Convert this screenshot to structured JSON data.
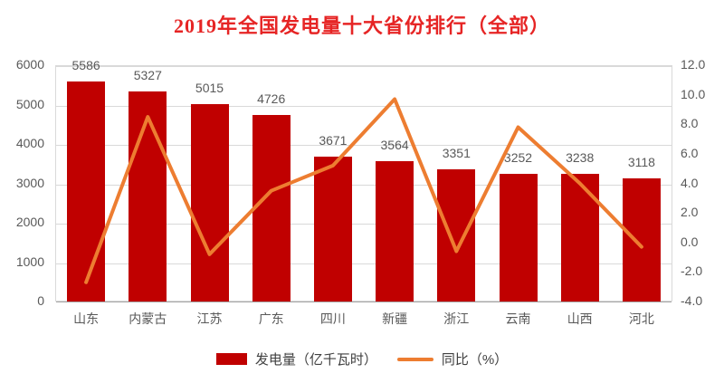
{
  "title": "2019年全国发电量十大省份排行（全部）",
  "colors": {
    "title": "#e62525",
    "bar": "#c00000",
    "line": "#ed7d31",
    "axis_text": "#595959",
    "grid": "#d9d9d9",
    "legend_text": "#404040"
  },
  "chart_data": {
    "type": "bar+line combo",
    "title": "2019年全国发电量十大省份排行（全部）",
    "categories": [
      "山东",
      "内蒙古",
      "江苏",
      "广东",
      "四川",
      "新疆",
      "浙江",
      "云南",
      "山西",
      "河北"
    ],
    "series": [
      {
        "name": "发电量（亿千瓦时）",
        "type": "bar",
        "axis": "left",
        "values": [
          5586,
          5327,
          5015,
          4726,
          3671,
          3564,
          3351,
          3252,
          3238,
          3118
        ],
        "data_labels_shown": true
      },
      {
        "name": "同比（%）",
        "type": "line",
        "axis": "right",
        "values": [
          -2.7,
          8.5,
          -0.8,
          3.5,
          5.2,
          9.7,
          -0.6,
          7.8,
          4.0,
          -0.3
        ],
        "data_labels_shown": false
      }
    ],
    "left_axis": {
      "min": 0,
      "max": 6000,
      "ticks": [
        "6000",
        "5000",
        "4000",
        "3000",
        "2000",
        "1000",
        "0"
      ]
    },
    "right_axis": {
      "min": -4,
      "max": 12,
      "ticks": [
        "12.0",
        "10.0",
        "8.0",
        "6.0",
        "4.0",
        "2.0",
        "0.0",
        "-2.0",
        "-4.0"
      ]
    },
    "grid": "horizontal gridlines at left-axis ticks",
    "legend_position": "bottom"
  },
  "legend": {
    "bar_label": "发电量（亿千瓦时）",
    "line_label": "同比（%）"
  }
}
